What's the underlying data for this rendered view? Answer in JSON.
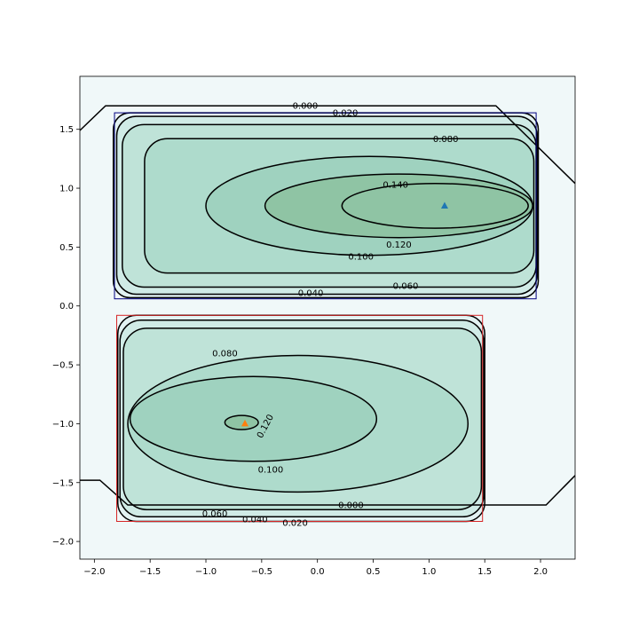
{
  "chart_data": {
    "type": "contour",
    "title": "",
    "xlabel": "",
    "ylabel": "",
    "xlim": [
      -2.13,
      2.31
    ],
    "ylim": [
      -2.15,
      1.95
    ],
    "x_ticks": [
      -2.0,
      -1.5,
      -1.0,
      -0.5,
      0.0,
      0.5,
      1.0,
      1.5,
      2.0
    ],
    "x_tick_labels": [
      "−2.0",
      "−1.5",
      "−1.0",
      "−0.5",
      "0.0",
      "0.5",
      "1.0",
      "1.5",
      "2.0"
    ],
    "y_ticks": [
      -2.0,
      -1.5,
      -1.0,
      -0.5,
      0.0,
      0.5,
      1.0,
      1.5
    ],
    "y_tick_labels": [
      "−2.0",
      "−1.5",
      "−1.0",
      "−0.5",
      "0.0",
      "0.5",
      "1.0",
      "1.5"
    ],
    "grid": false,
    "legend": "none",
    "background_color": "#f0f8f9",
    "contour_line_color": "#000000",
    "fill_colors": [
      "#e2f2f2",
      "#d0ebe6",
      "#bfe3d8",
      "#aedbcc",
      "#9fd2bf",
      "#8fc4a4"
    ],
    "regions": [
      {
        "name": "upper",
        "peak": [
          1.14,
          0.85
        ],
        "peak_color": "#1f77b4",
        "box": {
          "x": [
            -1.82,
            1.96
          ],
          "y": [
            0.06,
            1.64
          ]
        },
        "box_color": "#000080",
        "outer_line": {
          "value": "0.000",
          "points": [
            [
              -2.13,
              1.49
            ],
            [
              -1.9,
              1.7
            ],
            [
              1.6,
              1.7
            ],
            [
              2.31,
              1.04
            ]
          ]
        },
        "levels": [
          {
            "value": 0.02,
            "label": "0.020",
            "x": [
              -1.83,
              1.98
            ],
            "y": [
              0.07,
              1.64
            ]
          },
          {
            "value": 0.04,
            "label": "0.040",
            "x": [
              -1.8,
              1.97
            ],
            "y": [
              0.1,
              1.61
            ]
          },
          {
            "value": 0.06,
            "label": "0.060",
            "x": [
              -1.75,
              1.96
            ],
            "y": [
              0.16,
              1.54
            ]
          },
          {
            "value": 0.08,
            "label": "0.080",
            "x": [
              -1.55,
              1.94
            ],
            "y": [
              0.28,
              1.42
            ]
          },
          {
            "value": 0.1,
            "label": "0.100",
            "x": [
              -1.0,
              1.93
            ],
            "y": [
              0.43,
              1.27
            ]
          },
          {
            "value": 0.12,
            "label": "0.120",
            "x": [
              -0.47,
              1.93
            ],
            "y": [
              0.58,
              1.12
            ]
          },
          {
            "value": 0.14,
            "label": "0.140",
            "x": [
              0.22,
              1.89
            ],
            "y": [
              0.66,
              1.04
            ]
          }
        ],
        "labels": [
          {
            "text": "0.000",
            "at": [
              -0.11,
              1.7
            ]
          },
          {
            "text": "0.020",
            "at": [
              0.25,
              1.64
            ]
          },
          {
            "text": "0.080",
            "at": [
              1.15,
              1.42
            ]
          },
          {
            "text": "0.140",
            "at": [
              0.7,
              1.03
            ]
          },
          {
            "text": "0.120",
            "at": [
              0.73,
              0.52
            ]
          },
          {
            "text": "0.100",
            "at": [
              0.39,
              0.42
            ]
          },
          {
            "text": "0.060",
            "at": [
              0.79,
              0.17
            ]
          },
          {
            "text": "0.040",
            "at": [
              -0.06,
              0.11
            ]
          }
        ]
      },
      {
        "name": "lower",
        "peak": [
          -0.65,
          -1.0
        ],
        "peak_color": "#ff7f0e",
        "box": {
          "x": [
            -1.8,
            1.48
          ],
          "y": [
            -1.83,
            -0.08
          ]
        },
        "box_color": "#d62728",
        "outer_line": {
          "value": "0.000",
          "points": [
            [
              -2.13,
              -1.48
            ],
            [
              -1.95,
              -1.48
            ],
            [
              -1.7,
              -1.69
            ],
            [
              2.05,
              -1.69
            ],
            [
              2.31,
              -1.44
            ]
          ]
        },
        "levels": [
          {
            "value": 0.02,
            "label": "0.020",
            "x": [
              -1.79,
              1.5
            ],
            "y": [
              -1.83,
              -0.08
            ]
          },
          {
            "value": 0.04,
            "label": "0.040",
            "x": [
              -1.77,
              1.49
            ],
            "y": [
              -1.79,
              -0.12
            ]
          },
          {
            "value": 0.06,
            "label": "0.060",
            "x": [
              -1.74,
              1.47
            ],
            "y": [
              -1.73,
              -0.19
            ]
          },
          {
            "value": 0.08,
            "label": "0.080",
            "x": [
              -1.7,
              1.35
            ],
            "y": [
              -1.58,
              -0.42
            ]
          },
          {
            "value": 0.1,
            "label": "0.100",
            "x": [
              -1.68,
              0.53
            ],
            "y": [
              -1.32,
              -0.6
            ]
          },
          {
            "value": 0.12,
            "label": "0.120",
            "x": [
              -0.83,
              -0.53
            ],
            "y": [
              -1.05,
              -0.93
            ]
          }
        ],
        "labels": [
          {
            "text": "0.080",
            "at": [
              -0.83,
              -0.4
            ]
          },
          {
            "text": "0.120",
            "at": [
              -0.47,
              -1.02
            ],
            "rotate": -62
          },
          {
            "text": "0.100",
            "at": [
              -0.42,
              -1.39
            ]
          },
          {
            "text": "0.000",
            "at": [
              0.3,
              -1.69
            ]
          },
          {
            "text": "0.060",
            "at": [
              -0.92,
              -1.76
            ]
          },
          {
            "text": "0.040",
            "at": [
              -0.56,
              -1.81
            ]
          },
          {
            "text": "0.020",
            "at": [
              -0.2,
              -1.84
            ]
          }
        ]
      }
    ]
  }
}
